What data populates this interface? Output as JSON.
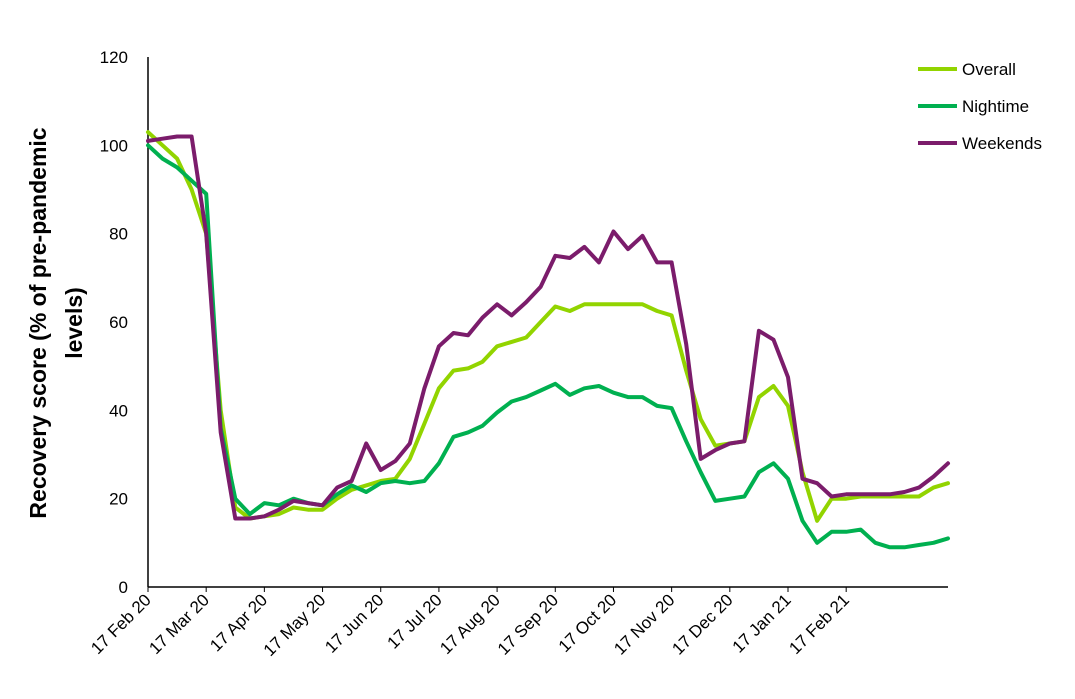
{
  "chart_data": {
    "type": "line",
    "title": "",
    "xlabel": "",
    "ylabel": [
      "Recovery score (% of pre-pandemic",
      "levels)"
    ],
    "ylim": [
      0,
      120
    ],
    "yticks": [
      0,
      20,
      40,
      60,
      80,
      100,
      120
    ],
    "grid": false,
    "legend_position": "top-right",
    "x_tick_labels": [
      "17 Feb 20",
      "17 Mar 20",
      "17 Apr 20",
      "17 May 20",
      "17 Jun 20",
      "17 Jul 20",
      "17 Aug 20",
      "17 Sep 20",
      "17 Oct 20",
      "17 Nov 20",
      "17 Dec 20",
      "17 Jan 21",
      "17 Feb 21"
    ],
    "x_tick_index": [
      0,
      4,
      8,
      12,
      16,
      20,
      24,
      28,
      32,
      36,
      40,
      44,
      48
    ],
    "series": [
      {
        "name": "Overall",
        "color": "#92d400",
        "values": [
          103,
          100,
          97,
          90,
          80,
          40,
          18,
          15.5,
          16,
          16.5,
          18,
          17.5,
          17.5,
          20,
          22,
          23,
          24,
          24.5,
          29,
          37,
          45,
          49,
          49.5,
          51,
          54.5,
          55.5,
          56.5,
          60,
          63.5,
          62.5,
          64,
          64,
          64,
          64,
          64,
          62.5,
          61.5,
          49,
          38,
          32,
          32.5,
          33,
          43,
          45.5,
          41,
          26,
          15,
          20,
          20,
          20.5,
          20.5,
          20.5,
          20.5,
          20.5,
          22.5,
          23.5
        ]
      },
      {
        "name": "Nightime",
        "color": "#00b050",
        "values": [
          100,
          97,
          95,
          92,
          89,
          36,
          20,
          16.5,
          19,
          18.5,
          20,
          19,
          18.5,
          21,
          23,
          21.5,
          23.5,
          24,
          23.5,
          24,
          28,
          34,
          35,
          36.5,
          39.5,
          42,
          43,
          44.5,
          46,
          43.5,
          45,
          45.5,
          44,
          43,
          43,
          41,
          40.5,
          33,
          26,
          19.5,
          20,
          20.5,
          26,
          28,
          24.5,
          15,
          10,
          12.5,
          12.5,
          13,
          10,
          9,
          9,
          9.5,
          10,
          11
        ]
      },
      {
        "name": "Weekends",
        "color": "#7b1c6b",
        "values": [
          101,
          101.5,
          102,
          102,
          80,
          35,
          15.5,
          15.5,
          16,
          17.5,
          19.5,
          19,
          18.5,
          22.5,
          24,
          32.5,
          26.5,
          28.5,
          32.5,
          45,
          54.5,
          57.5,
          57,
          61,
          64,
          61.5,
          64.5,
          68,
          75,
          74.5,
          77,
          73.5,
          80.5,
          76.5,
          79.5,
          73.5,
          73.5,
          55,
          29,
          31,
          32.5,
          33,
          58,
          56,
          47.5,
          24.5,
          23.5,
          20.5,
          21,
          21,
          21,
          21,
          21.5,
          22.5,
          25,
          28
        ]
      }
    ]
  }
}
